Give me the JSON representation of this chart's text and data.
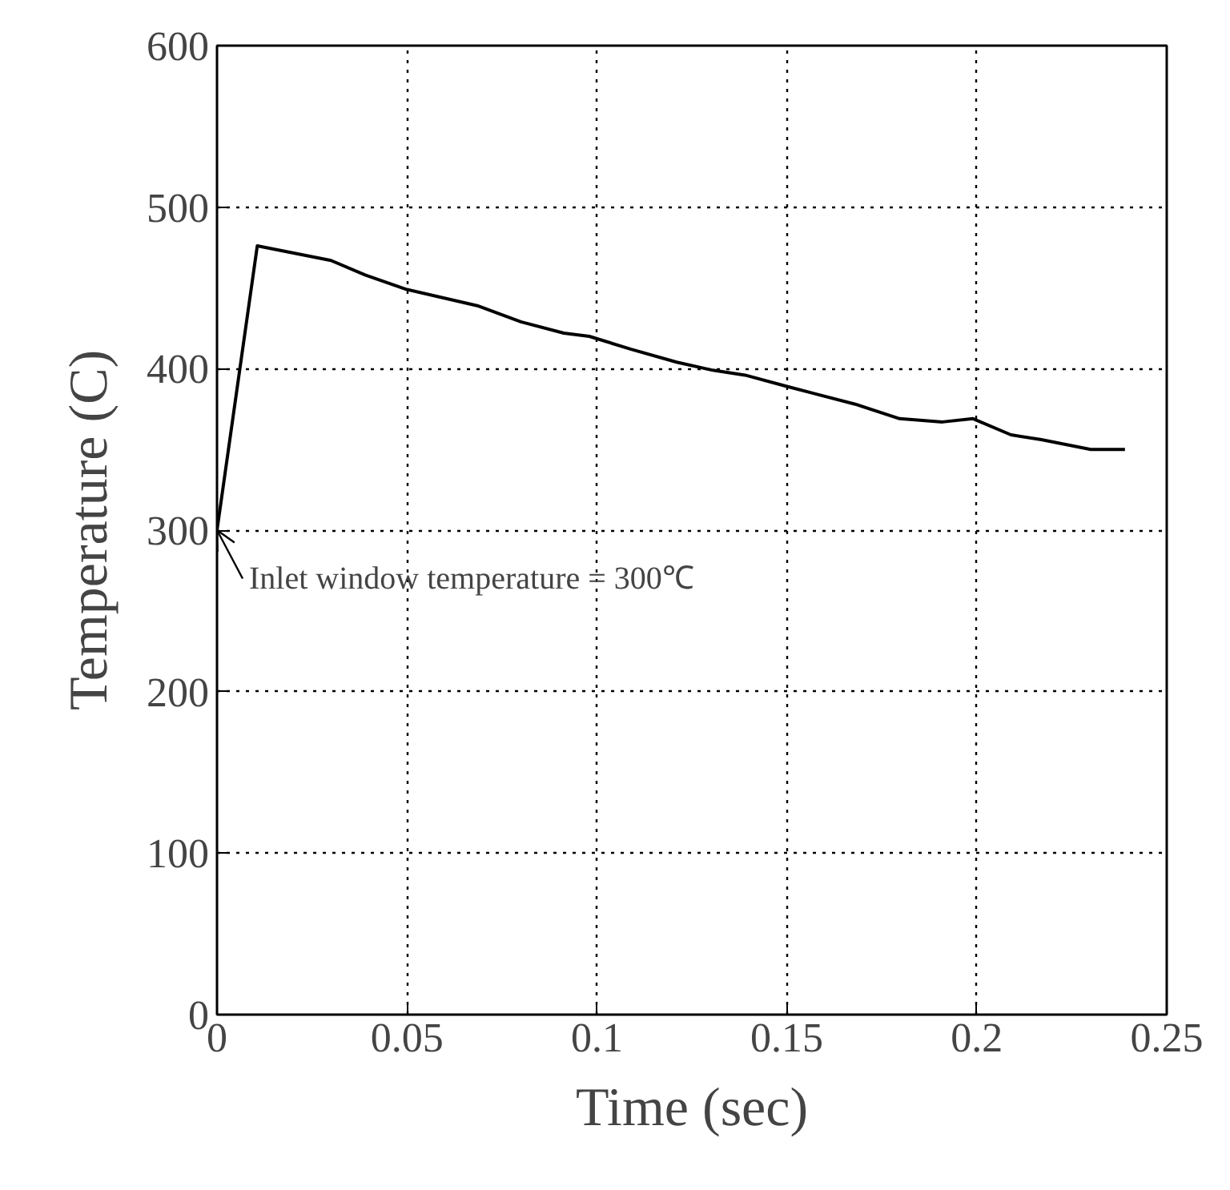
{
  "chart_data": {
    "type": "line",
    "xlabel": "Time (sec)",
    "ylabel": "Temperature (C)",
    "x": [
      0,
      0.0106,
      0.03,
      0.039,
      0.05,
      0.0685,
      0.08,
      0.0913,
      0.098,
      0.109,
      0.121,
      0.1305,
      0.139,
      0.15,
      0.168,
      0.1797,
      0.191,
      0.199,
      0.209,
      0.217,
      0.23,
      0.239
    ],
    "series": [
      {
        "color": "#000000",
        "values": [
          300,
          476,
          467,
          458,
          449,
          439,
          429,
          422,
          420,
          412,
          404,
          399,
          396,
          389,
          378,
          369,
          367,
          369,
          359,
          356,
          350,
          350
        ]
      }
    ],
    "xlim": [
      0,
      0.25
    ],
    "ylim": [
      0,
      600
    ],
    "xticks": [
      0,
      0.05,
      0.1,
      0.15,
      0.2,
      0.25
    ],
    "yticks": [
      0,
      100,
      200,
      300,
      400,
      500,
      600
    ],
    "grid": true,
    "line_style": "solid",
    "marker": "none",
    "annotations": [
      {
        "text": "Inlet window temperature = 300℃",
        "x": 0,
        "y": 300
      }
    ]
  }
}
